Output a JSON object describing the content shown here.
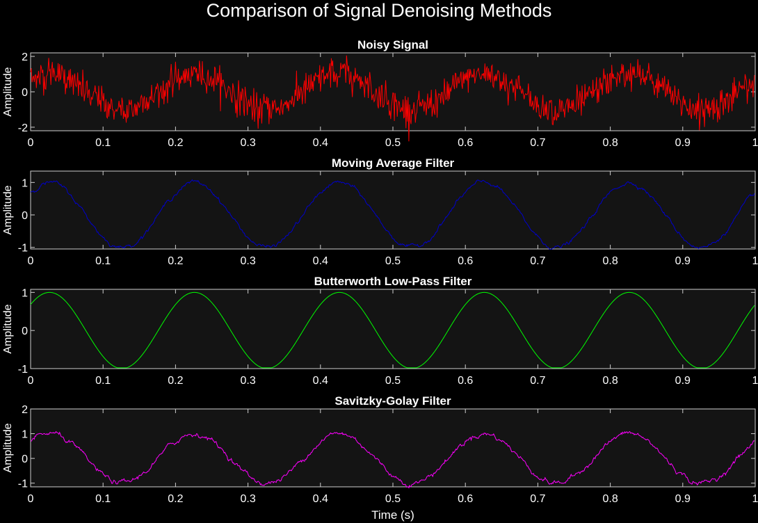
{
  "figure": {
    "title": "Comparison of Signal Denoising Methods"
  },
  "chart_data": [
    {
      "type": "line",
      "title": "Noisy Signal",
      "ylabel": "Amplitude",
      "xlabel": "",
      "xlim": [
        0,
        1
      ],
      "ylim": [
        -2.2,
        2.2
      ],
      "xticks": [
        "0",
        "0.1",
        "0.2",
        "0.3",
        "0.4",
        "0.5",
        "0.6",
        "0.7",
        "0.8",
        "0.9",
        "1"
      ],
      "yticks": [
        "-2",
        "0",
        "2"
      ],
      "ytick_values": [
        -2,
        0,
        2
      ],
      "grid": false,
      "series": [
        {
          "color": "#ff0000",
          "noise": 0.45,
          "points": 1000,
          "x_end": 0.999,
          "description_amplitude": 1.0,
          "frequency_hz": 5
        }
      ]
    },
    {
      "type": "line",
      "title": "Moving Average Filter",
      "ylabel": "Amplitude",
      "xlabel": "",
      "xlim": [
        0,
        1
      ],
      "ylim": [
        -1.05,
        1.35
      ],
      "xticks": [
        "0",
        "0.1",
        "0.2",
        "0.3",
        "0.4",
        "0.5",
        "0.6",
        "0.7",
        "0.8",
        "0.9",
        "1"
      ],
      "yticks": [
        "-1",
        "0",
        "1"
      ],
      "ytick_values": [
        -1,
        0,
        1
      ],
      "grid": false,
      "series": [
        {
          "color": "#0000cd",
          "noise": 0.06,
          "points": 1000,
          "x_end": 0.999,
          "description_amplitude": 1.0,
          "frequency_hz": 5
        }
      ]
    },
    {
      "type": "line",
      "title": "Butterworth Low-Pass Filter",
      "ylabel": "Amplitude",
      "xlabel": "",
      "xlim": [
        0,
        1
      ],
      "ylim": [
        -1,
        1.08
      ],
      "xticks": [
        "0",
        "0.1",
        "0.2",
        "0.3",
        "0.4",
        "0.5",
        "0.6",
        "0.7",
        "0.8",
        "0.9",
        "1"
      ],
      "yticks": [
        "-1",
        "0",
        "1"
      ],
      "ytick_values": [
        -1,
        0,
        1
      ],
      "grid": false,
      "series": [
        {
          "color": "#00ff00",
          "noise": 0.0,
          "points": 1000,
          "x_end": 0.999,
          "description_amplitude": 1.0,
          "frequency_hz": 5
        }
      ]
    },
    {
      "type": "line",
      "title": "Savitzky-Golay Filter",
      "ylabel": "Amplitude",
      "xlabel": "Time (s)",
      "xlim": [
        0,
        1
      ],
      "ylim": [
        -1.15,
        2
      ],
      "xticks": [
        "0",
        "0.1",
        "0.2",
        "0.3",
        "0.4",
        "0.5",
        "0.6",
        "0.7",
        "0.8",
        "0.9",
        "1"
      ],
      "yticks": [
        "-1",
        "0",
        "1",
        "2"
      ],
      "ytick_values": [
        -1,
        0,
        1,
        2
      ],
      "grid": false,
      "series": [
        {
          "color": "#ff00ff",
          "noise": 0.1,
          "points": 1000,
          "x_end": 0.999,
          "description_amplitude": 1.0,
          "frequency_hz": 5
        }
      ]
    }
  ]
}
